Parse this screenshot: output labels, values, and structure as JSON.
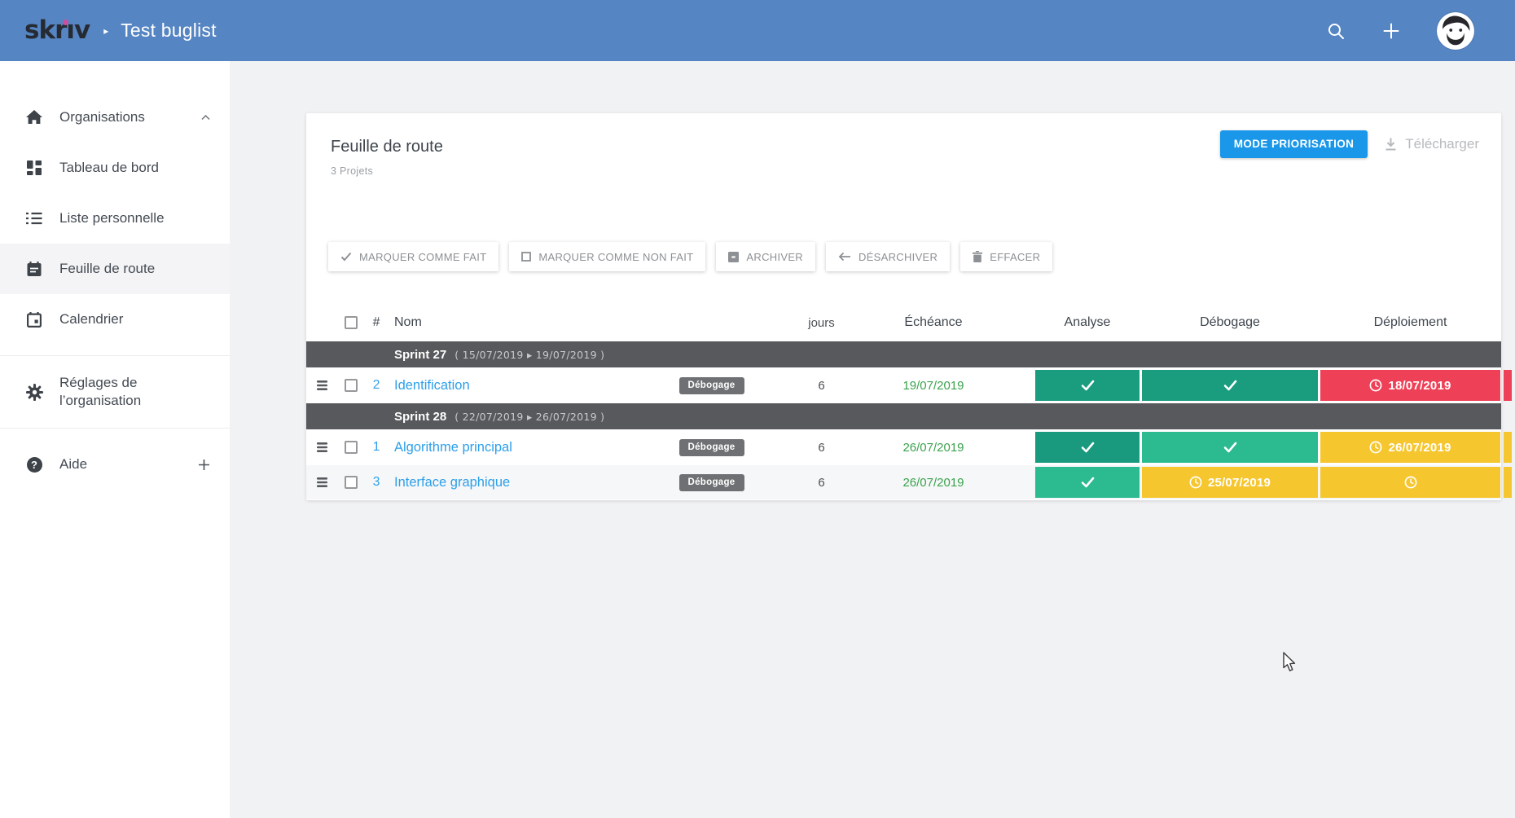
{
  "topbar": {
    "logo": "skriv",
    "separator": "▸",
    "title": "Test buglist"
  },
  "sidebar": {
    "items": [
      {
        "label": "Organisations",
        "icon": "home-icon",
        "trailing": "chevron-up-icon",
        "active": false
      },
      {
        "label": "Tableau de bord",
        "icon": "dashboard-icon",
        "active": false
      },
      {
        "label": "Liste personnelle",
        "icon": "list-icon",
        "active": false
      },
      {
        "label": "Feuille de route",
        "icon": "roadmap-icon",
        "active": true
      },
      {
        "label": "Calendrier",
        "icon": "calendar-icon",
        "active": false
      },
      {
        "label": "Réglages de l’organisation",
        "icon": "gear-icon",
        "active": false,
        "divider_before": true
      },
      {
        "label": "Aide",
        "icon": "help-icon",
        "trailing": "plus-icon",
        "active": false,
        "divider_before": true
      }
    ]
  },
  "content": {
    "title": "Feuille de route",
    "subtitle": "3 Projets",
    "priorisation_button": "MODE PRIORISATION",
    "download_label": "Télécharger"
  },
  "actions": [
    {
      "label": "MARQUER COMME FAIT",
      "icon": "check-icon"
    },
    {
      "label": "MARQUER COMME NON FAIT",
      "icon": "square-icon"
    },
    {
      "label": "ARCHIVER",
      "icon": "archive-icon"
    },
    {
      "label": "DÉSARCHIVER",
      "icon": "arrow-left-icon"
    },
    {
      "label": "EFFACER",
      "icon": "trash-icon"
    }
  ],
  "table": {
    "headers": {
      "num": "#",
      "name": "Nom",
      "days": "jours",
      "due": "Échéance",
      "analyse": "Analyse",
      "debug": "Débogage",
      "deploy": "Déploiement"
    },
    "groups": [
      {
        "sprint": "Sprint 27",
        "range": "( 15/07/2019 ▸ 19/07/2019 )",
        "rows": [
          {
            "num": "2",
            "name": "Identification",
            "badge": "Débogage",
            "days": "6",
            "due": "19/07/2019",
            "striped": false,
            "statuses": [
              {
                "kind": "check",
                "color": "#1A9C7F"
              },
              {
                "kind": "check",
                "color": "#1A9C7F"
              },
              {
                "kind": "clock-date",
                "text": "18/07/2019",
                "color": "#EE4056"
              }
            ]
          }
        ]
      },
      {
        "sprint": "Sprint 28",
        "range": "( 22/07/2019 ▸ 26/07/2019 )",
        "rows": [
          {
            "num": "1",
            "name": "Algorithme principal",
            "badge": "Débogage",
            "days": "6",
            "due": "26/07/2019",
            "striped": false,
            "statuses": [
              {
                "kind": "check",
                "color": "#199A7E"
              },
              {
                "kind": "check",
                "color": "#2CBA90"
              },
              {
                "kind": "clock-date",
                "text": "26/07/2019",
                "color": "#F6C62E"
              }
            ]
          },
          {
            "num": "3",
            "name": "Interface graphique",
            "badge": "Débogage",
            "days": "6",
            "due": "26/07/2019",
            "striped": true,
            "statuses": [
              {
                "kind": "check",
                "color": "#2CBA90"
              },
              {
                "kind": "clock-date",
                "text": "25/07/2019",
                "color": "#F6C62E"
              },
              {
                "kind": "clock",
                "color": "#F6C62E"
              }
            ]
          }
        ]
      }
    ]
  },
  "colors": {
    "topbar": "#5685C3",
    "accent_blue": "#1A97E8",
    "link_blue": "#2D9FE9",
    "green_dark": "#1A9C7F",
    "green_light": "#2CBA90",
    "yellow": "#F6C62E",
    "red": "#EE4056",
    "due_green": "#3BA24E",
    "sprint_bg": "#58595C",
    "logo_dot": "#C9509E"
  }
}
